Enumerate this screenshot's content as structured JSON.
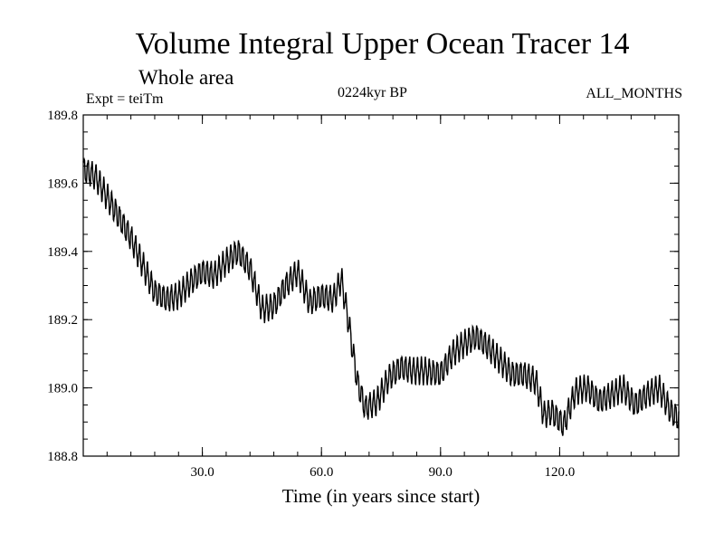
{
  "header": {
    "title": "Volume Integral Upper Ocean Tracer 14",
    "subtitle": "Whole area",
    "experiment": "Expt = teiTm",
    "period": "0224kyr BP",
    "months": "ALL_MONTHS"
  },
  "chart_data": {
    "type": "line",
    "title": "Volume Integral Upper Ocean Tracer 14",
    "subtitle": "Whole area",
    "xlabel": "Time (in years since start)",
    "ylabel": "",
    "xlim": [
      0,
      150
    ],
    "ylim": [
      188.8,
      189.8
    ],
    "x_ticks": [
      30,
      60,
      90,
      120
    ],
    "x_tick_labels": [
      "30.0",
      "60.0",
      "90.0",
      "120.0"
    ],
    "y_ticks": [
      188.8,
      189.0,
      189.2,
      189.4,
      189.6,
      189.8
    ],
    "y_tick_labels": [
      "188.8",
      "189.0",
      "189.2",
      "189.4",
      "189.6",
      "189.8"
    ],
    "grid": false,
    "series": [
      {
        "name": "Upper Ocean Tracer 14",
        "x": [
          0,
          3,
          6,
          9,
          12,
          15,
          18,
          21,
          24,
          27,
          30,
          33,
          36,
          39,
          42,
          45,
          48,
          51,
          54,
          57,
          60,
          63,
          65,
          67,
          69,
          71,
          74,
          77,
          80,
          83,
          86,
          90,
          93,
          96,
          99,
          102,
          105,
          108,
          111,
          114,
          116,
          118,
          121,
          124,
          127,
          130,
          133,
          136,
          139,
          142,
          145,
          148,
          150
        ],
        "values": [
          189.64,
          189.62,
          189.56,
          189.5,
          189.44,
          189.36,
          189.28,
          189.26,
          189.27,
          189.31,
          189.34,
          189.33,
          189.37,
          189.4,
          189.35,
          189.23,
          189.24,
          189.3,
          189.34,
          189.25,
          189.27,
          189.26,
          189.32,
          189.18,
          189.02,
          188.94,
          188.96,
          189.03,
          189.06,
          189.05,
          189.05,
          189.04,
          189.1,
          189.13,
          189.15,
          189.12,
          189.08,
          189.04,
          189.04,
          189.02,
          188.92,
          188.93,
          188.89,
          188.99,
          189.0,
          188.96,
          188.98,
          189.0,
          188.95,
          188.98,
          189.0,
          188.93,
          188.91
        ]
      }
    ],
    "seasonal_amplitude": 0.035,
    "line_color": "#000000"
  }
}
